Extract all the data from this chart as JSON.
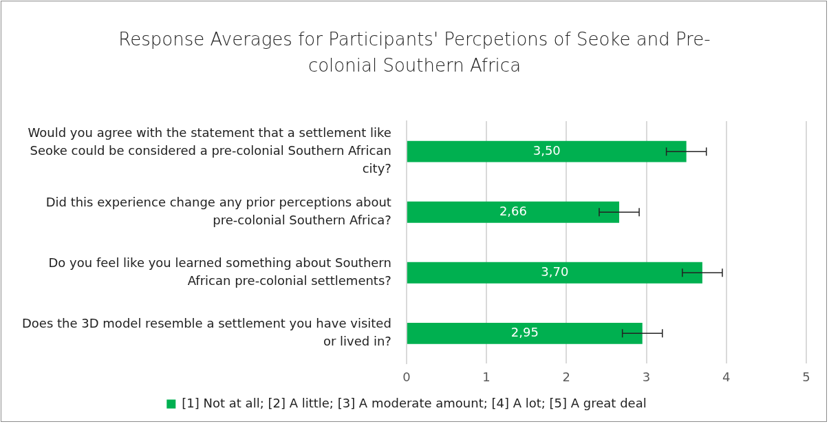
{
  "chart_data": {
    "type": "bar",
    "orientation": "horizontal",
    "title": "Response Averages for Participants' Percpetions of Seoke and Pre-colonial Southern Africa",
    "categories": [
      "Would you agree with the statement that a settlement like Seoke could be considered a pre-colonial Southern African city?",
      "Did this experience change any prior perceptions about pre-colonial Southern Africa?",
      "Do you feel like you learned something about Southern African pre-colonial settlements?",
      "Does the 3D model resemble a settlement you have visited or lived in?"
    ],
    "series": [
      {
        "name": "[1] Not at all; [2] A little; [3] A moderate amount; [4] A lot; [5] A great deal",
        "color": "#00b050",
        "values": [
          3.5,
          2.66,
          3.7,
          2.95
        ],
        "errors": [
          0.25,
          0.25,
          0.25,
          0.25
        ],
        "value_labels": [
          "3,50",
          "2,66",
          "3,70",
          "2,95"
        ]
      }
    ],
    "xlim": [
      0,
      5
    ],
    "xticks": [
      0,
      1,
      2,
      3,
      4,
      5
    ],
    "grid": "x",
    "legend": "bottom"
  }
}
